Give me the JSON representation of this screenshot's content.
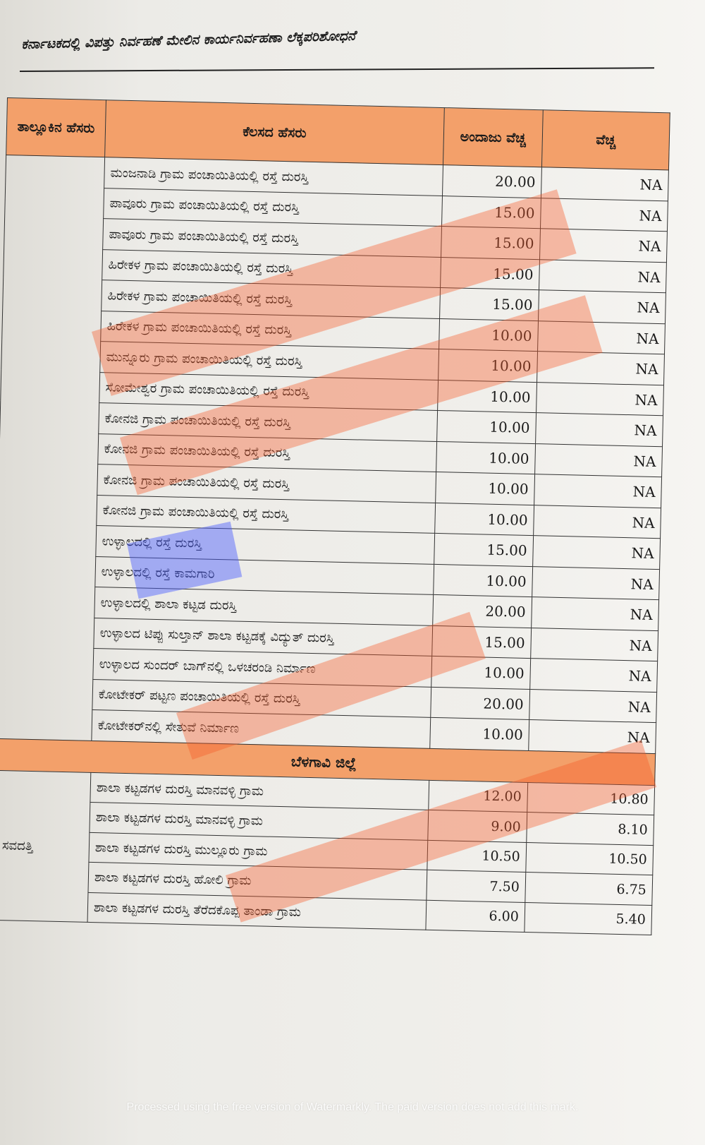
{
  "running_head": "ಕರ್ನಾಟಕದಲ್ಲಿ ವಿಪತ್ತು ನಿರ್ವಹಣೆ ಮೇಲಿನ ಕಾರ್ಯನಿರ್ವಹಣಾ ಲೆಕ್ಕಪರಿಶೋಧನೆ",
  "headers": {
    "taluk": "ತಾಲ್ಲೂಕಿನ ಹೆಸರು",
    "work": "ಕೆಲಸದ ಹೆಸರು",
    "estimate": "ಅಂದಾಜು ವೆಚ್ಚ",
    "expense": "ವೆಚ್ಚ"
  },
  "rows": [
    {
      "work": "ಮಂಜನಾಡಿ ಗ್ರಾಮ ಪಂಚಾಯಿತಿಯಲ್ಲಿ ರಸ್ತೆ ದುರಸ್ತಿ",
      "estimate": "20.00",
      "expense": "NA"
    },
    {
      "work": "ಪಾವೂರು ಗ್ರಾಮ ಪಂಚಾಯಿತಿಯಲ್ಲಿ ರಸ್ತೆ ದುರಸ್ತಿ",
      "estimate": "15.00",
      "expense": "NA"
    },
    {
      "work": "ಪಾವೂರು ಗ್ರಾಮ ಪಂಚಾಯಿತಿಯಲ್ಲಿ ರಸ್ತೆ ದುರಸ್ತಿ",
      "estimate": "15.00",
      "expense": "NA"
    },
    {
      "work": "ಹಿರೇಕಳ ಗ್ರಾಮ ಪಂಚಾಯಿತಿಯಲ್ಲಿ ರಸ್ತೆ ದುರಸ್ತಿ",
      "estimate": "15.00",
      "expense": "NA"
    },
    {
      "work": "ಹಿರೇಕಳ ಗ್ರಾಮ ಪಂಚಾಯಿತಿಯಲ್ಲಿ ರಸ್ತೆ ದುರಸ್ತಿ",
      "estimate": "15.00",
      "expense": "NA"
    },
    {
      "work": "ಹಿರೇಕಳ ಗ್ರಾಮ ಪಂಚಾಯಿತಿಯಲ್ಲಿ ರಸ್ತೆ ದುರಸ್ತಿ",
      "estimate": "10.00",
      "expense": "NA"
    },
    {
      "work": "ಮುನ್ನೂರು ಗ್ರಾಮ ಪಂಚಾಯಿತಿಯಲ್ಲಿ ರಸ್ತೆ ದುರಸ್ತಿ",
      "estimate": "10.00",
      "expense": "NA"
    },
    {
      "work": "ಸೋಮೇಶ್ವರ ಗ್ರಾಮ ಪಂಚಾಯಿತಿಯಲ್ಲಿ ರಸ್ತೆ ದುರಸ್ತಿ",
      "estimate": "10.00",
      "expense": "NA"
    },
    {
      "work": "ಕೋನಜಿ ಗ್ರಾಮ ಪಂಚಾಯಿತಿಯಲ್ಲಿ ರಸ್ತೆ ದುರಸ್ತಿ",
      "estimate": "10.00",
      "expense": "NA"
    },
    {
      "work": "ಕೋನಜಿ ಗ್ರಾಮ ಪಂಚಾಯಿತಿಯಲ್ಲಿ ರಸ್ತೆ ದುರಸ್ತಿ",
      "estimate": "10.00",
      "expense": "NA"
    },
    {
      "work": "ಕೋನಜಿ ಗ್ರಾಮ ಪಂಚಾಯಿತಿಯಲ್ಲಿ ರಸ್ತೆ ದುರಸ್ತಿ",
      "estimate": "10.00",
      "expense": "NA"
    },
    {
      "work": "ಕೋನಜಿ ಗ್ರಾಮ ಪಂಚಾಯಿತಿಯಲ್ಲಿ ರಸ್ತೆ ದುರಸ್ತಿ",
      "estimate": "10.00",
      "expense": "NA"
    },
    {
      "work": "ಉಳ್ಳಾಲದಲ್ಲಿ ರಸ್ತೆ ದುರಸ್ತಿ",
      "estimate": "15.00",
      "expense": "NA"
    },
    {
      "work": "ಉಳ್ಳಾಲದಲ್ಲಿ ರಸ್ತೆ ಕಾಮಗಾರಿ",
      "estimate": "10.00",
      "expense": "NA"
    },
    {
      "work": "ಉಳ್ಳಾಲದಲ್ಲಿ ಶಾಲಾ ಕಟ್ಟಡ ದುರಸ್ತಿ",
      "estimate": "20.00",
      "expense": "NA"
    },
    {
      "work": "ಉಳ್ಳಾಲದ ಟಿಪ್ಪು ಸುಲ್ತಾನ್ ಶಾಲಾ ಕಟ್ಟಡಕ್ಕೆ ವಿದ್ಯುತ್ ದುರಸ್ತಿ",
      "estimate": "15.00",
      "expense": "NA"
    },
    {
      "work": "ಉಳ್ಳಾಲದ ಸುಂದರ್ ಬಾಗ್‌ನಲ್ಲಿ ಒಳಚರಂಡಿ ನಿರ್ಮಾಣ",
      "estimate": "10.00",
      "expense": "NA"
    },
    {
      "work": "ಕೋಟೇಕರ್ ಪಟ್ಟಣ ಪಂಚಾಯಿತಿಯಲ್ಲಿ ರಸ್ತೆ ದುರಸ್ತಿ",
      "estimate": "20.00",
      "expense": "NA"
    },
    {
      "work": "ಕೋಟೇಕರ್‌ನಲ್ಲಿ ಸೇತುವೆ ನಿರ್ಮಾಣ",
      "estimate": "10.00",
      "expense": "NA"
    }
  ],
  "district_header": "ಬೆಳಗಾವಿ ಜಿಲ್ಲೆ",
  "district_taluk": "ಸವದತ್ತಿ",
  "district_rows": [
    {
      "work": "ಶಾಲಾ ಕಟ್ಟಡಗಳ ದುರಸ್ತಿ ಮಾನವಳ್ಳಿ ಗ್ರಾಮ",
      "estimate": "12.00",
      "expense": "10.80"
    },
    {
      "work": "ಶಾಲಾ ಕಟ್ಟಡಗಳ ದುರಸ್ತಿ ಮಾನವಳ್ಳಿ ಗ್ರಾಮ",
      "estimate": "9.00",
      "expense": "8.10"
    },
    {
      "work": "ಶಾಲಾ ಕಟ್ಟಡಗಳ ದುರಸ್ತಿ ಮುಲ್ಲೂರು ಗ್ರಾಮ",
      "estimate": "10.50",
      "expense": "10.50"
    },
    {
      "work": "ಶಾಲಾ ಕಟ್ಟಡಗಳ ದುರಸ್ತಿ ಹೋಲಿ ಗ್ರಾಮ",
      "estimate": "7.50",
      "expense": "6.75"
    },
    {
      "work": "ಶಾಲಾ ಕಟ್ಟಡಗಳ ದುರಸ್ತಿ ತೆರೆದಕೊಪ್ಪ ತಾಂಡಾ ಗ್ರಾಮ",
      "estimate": "6.00",
      "expense": "5.40"
    }
  ],
  "watermark": "Processed using the free version of Watermarkly. The paid version does not add this mark.",
  "colors": {
    "header_fill": "#f3a06a",
    "highlight_orange": "#f85a28",
    "highlight_blue": "#465aff"
  }
}
